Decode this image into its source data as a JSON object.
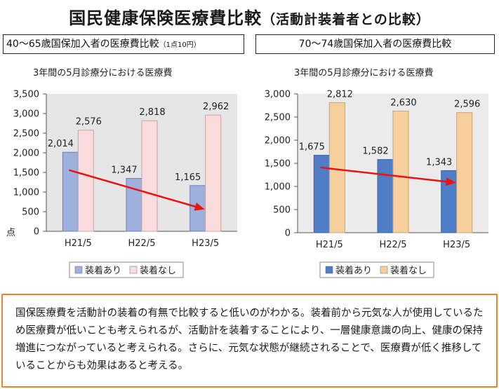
{
  "header": {
    "title": "国民健康保険医療費比較",
    "subtitle": "（活動計装着者との比較）"
  },
  "left_panel": {
    "heading": "40～65歳国保加入者の医療費比較",
    "heading_note": "（1点10円）",
    "chart_title": "3年間の5月診療分における医療費"
  },
  "right_panel": {
    "heading": "70～74歳国保加入者の医療費比較",
    "chart_title": "3年間の5月診療分における医療費"
  },
  "colors": {
    "left_with": "#9fb0dc",
    "left_without": "#fbdcdc",
    "right_with": "#4f7ec6",
    "right_without": "#f7cf9c",
    "arrow": "#ee1111",
    "plot_bg_left": "#e6e6e6",
    "plot_bg_right": "#ebebeb",
    "note_border": "#e8842a"
  },
  "chart_data": [
    {
      "type": "bar",
      "title": "3年間の5月診療分における医療費",
      "categories": [
        "H21/5",
        "H22/5",
        "H23/5"
      ],
      "series": [
        {
          "name": "装着あり",
          "values": [
            2014,
            1347,
            1165
          ]
        },
        {
          "name": "装着なし",
          "values": [
            2576,
            2818,
            2962
          ]
        }
      ],
      "data_labels": {
        "装着あり": [
          "2,014",
          "1,347",
          "1,165"
        ],
        "装着なし": [
          "2,576",
          "2,818",
          "2,962"
        ]
      },
      "ylim": [
        0,
        3500
      ],
      "yticks": [
        0,
        500,
        1000,
        1500,
        2000,
        2500,
        3000,
        3500
      ],
      "ytick_labels": [
        "0",
        "500",
        "1,000",
        "1,500",
        "2,000",
        "2,500",
        "3,000",
        "3,500"
      ],
      "yunit": "点",
      "legend_position": "bottom",
      "trend_arrow": {
        "from": [
          0,
          1560
        ],
        "to": [
          2,
          560
        ]
      }
    },
    {
      "type": "bar",
      "title": "3年間の5月診療分における医療費",
      "categories": [
        "H21/5",
        "H22/5",
        "H23/5"
      ],
      "series": [
        {
          "name": "装着あり",
          "values": [
            1675,
            1582,
            1343
          ]
        },
        {
          "name": "装着なし",
          "values": [
            2812,
            2630,
            2596
          ]
        }
      ],
      "data_labels": {
        "装着あり": [
          "1,675",
          "1,582",
          "1,343"
        ],
        "装着なし": [
          "2,812",
          "2,630",
          "2,596"
        ]
      },
      "ylim": [
        0,
        3000
      ],
      "yticks": [
        0,
        500,
        1000,
        1500,
        2000,
        2500,
        3000
      ],
      "ytick_labels": [
        "0",
        "500",
        "1,000",
        "1,500",
        "2,000",
        "2,500",
        "3,000"
      ],
      "legend_position": "bottom",
      "trend_arrow": {
        "from": [
          0,
          1410
        ],
        "to": [
          2,
          1080
        ]
      }
    }
  ],
  "summary_text": "国保医療費を活動計の装着の有無で比較すると低いのがわかる。装着前から元気な人が使用しているため医療費が低いことも考えられるが、活動計を装着することにより、一層健康意識の向上、健康の保持増進につながっていると考えられる。さらに、元気な状態が継続されることで、医療費が低く推移していることからも効果はあると考える。"
}
